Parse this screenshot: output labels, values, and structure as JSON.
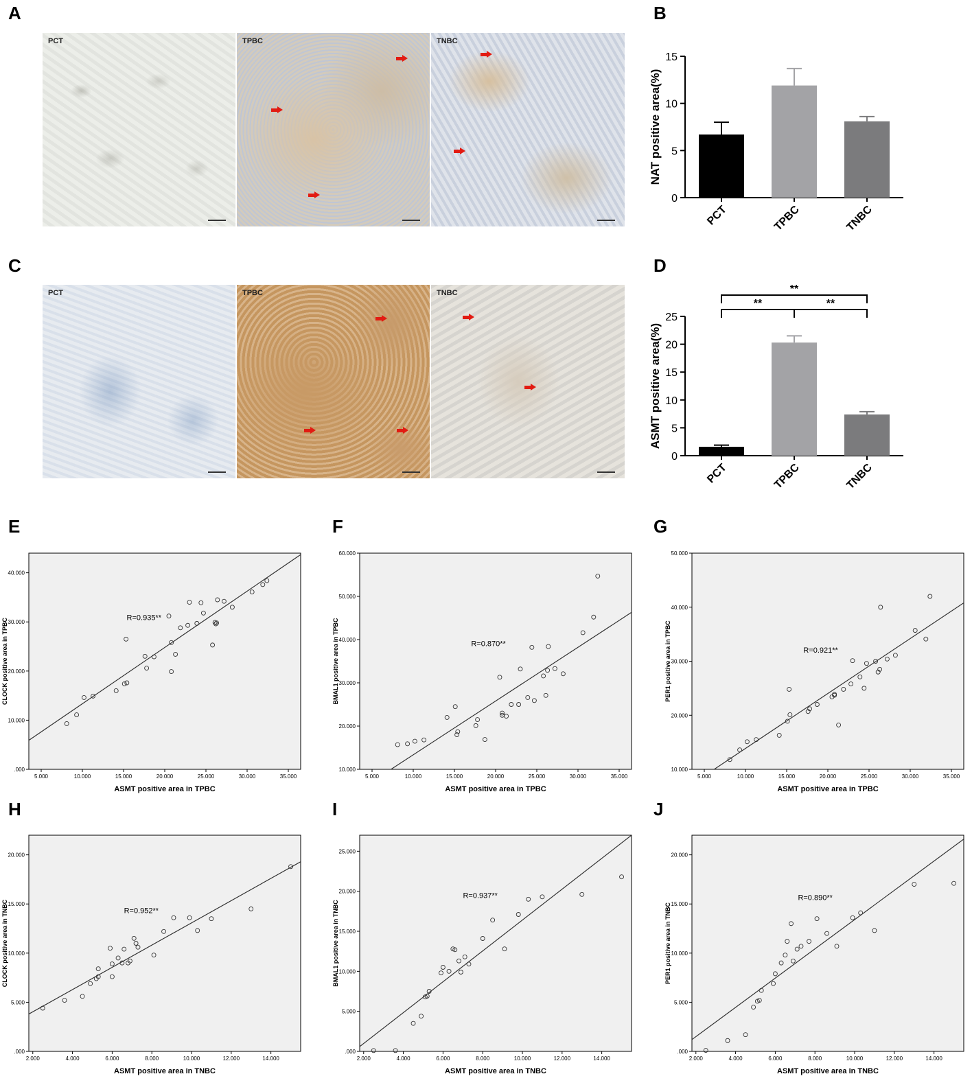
{
  "panels": {
    "A": {
      "letter": "A",
      "images": [
        {
          "label": "PCT"
        },
        {
          "label": "TPBC"
        },
        {
          "label": "TNBC"
        }
      ]
    },
    "B": {
      "letter": "B"
    },
    "C": {
      "letter": "C",
      "images": [
        {
          "label": "PCT"
        },
        {
          "label": "TPBC"
        },
        {
          "label": "TNBC"
        }
      ]
    },
    "D": {
      "letter": "D"
    },
    "E": {
      "letter": "E"
    },
    "F": {
      "letter": "F"
    },
    "G": {
      "letter": "G"
    },
    "H": {
      "letter": "H"
    },
    "I": {
      "letter": "I"
    },
    "J": {
      "letter": "J"
    }
  },
  "colors": {
    "bar_pct": "#000000",
    "bar_tpbc": "#a3a3a6",
    "bar_tnbc": "#7b7b7d",
    "scatter_bg": "#f0f0f0",
    "arrow": "#e21b12"
  },
  "chart_data": [
    {
      "id": "B",
      "type": "bar",
      "categories": [
        "PCT",
        "TPBC",
        "TNBC"
      ],
      "values": [
        6.7,
        11.9,
        8.1
      ],
      "errors": [
        1.3,
        1.8,
        0.5
      ],
      "ylabel": "NAT positive area(%)",
      "ylim": [
        0,
        15
      ],
      "yticks": [
        0,
        5,
        10,
        15
      ]
    },
    {
      "id": "D",
      "type": "bar",
      "categories": [
        "PCT",
        "TPBC",
        "TNBC"
      ],
      "values": [
        1.6,
        20.3,
        7.4
      ],
      "errors": [
        0.3,
        1.2,
        0.5
      ],
      "ylabel": "ASMT positive area(%)",
      "ylim": [
        0,
        25
      ],
      "yticks": [
        0,
        5,
        10,
        15,
        20,
        25
      ],
      "significance": [
        {
          "from": 0,
          "to": 1,
          "label": "**"
        },
        {
          "from": 1,
          "to": 2,
          "label": "**"
        },
        {
          "from": 0,
          "to": 2,
          "label": "**"
        }
      ]
    },
    {
      "id": "E",
      "type": "scatter",
      "xlabel": "ASMT positive area in TPBC",
      "ylabel": "CLOCK positive area in TPBC",
      "annotation": "R=0.935**",
      "xlim": [
        3.5,
        36.5
      ],
      "ylim": [
        0,
        44
      ],
      "xticks": [
        5,
        10,
        15,
        20,
        25,
        30,
        35
      ],
      "xtick_labels": [
        "5.000",
        "10.000",
        "15.000",
        "20.000",
        "25.000",
        "30.000",
        "35.000"
      ],
      "yticks": [
        0,
        10,
        20,
        30,
        40
      ],
      "ytick_labels": [
        ".000",
        "10.000",
        "20.000",
        "30.000",
        "40.000"
      ],
      "x": [
        8.1,
        9.3,
        10.2,
        11.3,
        14.1,
        15.1,
        15.3,
        15.4,
        17.6,
        17.8,
        18.7,
        20.5,
        20.8,
        20.8,
        21.3,
        21.9,
        22.8,
        23.0,
        23.9,
        24.4,
        24.7,
        25.8,
        26.1,
        26.3,
        26.2,
        26.4,
        27.2,
        28.2,
        30.6,
        31.9,
        32.4
      ],
      "y": [
        9.3,
        11.1,
        14.6,
        14.9,
        16.0,
        17.4,
        26.5,
        17.6,
        23.0,
        20.6,
        22.9,
        31.2,
        19.9,
        25.8,
        23.4,
        28.8,
        29.3,
        34.0,
        29.7,
        33.9,
        31.8,
        25.3,
        29.9,
        29.8,
        29.6,
        34.5,
        34.2,
        33.0,
        36.1,
        37.6,
        38.4
      ],
      "fit": {
        "x0": 3.5,
        "y0": 5.9,
        "x1": 36.5,
        "y1": 43.7
      }
    },
    {
      "id": "F",
      "type": "scatter",
      "xlabel": "ASMT positive area in TPBC",
      "ylabel": "BMAL1 positive area in TPBC",
      "annotation": "R=0.870**",
      "xlim": [
        3.5,
        36.5
      ],
      "ylim": [
        10,
        60
      ],
      "xticks": [
        5,
        10,
        15,
        20,
        25,
        30,
        35
      ],
      "xtick_labels": [
        "5.000",
        "10.000",
        "15.000",
        "20.000",
        "25.000",
        "30.000",
        "35.000"
      ],
      "yticks": [
        10,
        20,
        30,
        40,
        50,
        60
      ],
      "ytick_labels": [
        "10.000",
        "20.000",
        "30.000",
        "40.000",
        "50.000",
        "60.000"
      ],
      "x": [
        8.1,
        9.3,
        10.2,
        11.3,
        14.1,
        15.1,
        15.3,
        15.4,
        17.6,
        17.8,
        18.7,
        20.5,
        20.8,
        20.8,
        21.3,
        21.9,
        22.8,
        23.0,
        23.9,
        24.4,
        24.7,
        25.8,
        26.1,
        26.3,
        26.4,
        27.2,
        28.2,
        30.6,
        31.9,
        32.4
      ],
      "y": [
        15.7,
        15.9,
        16.5,
        16.8,
        22.0,
        24.5,
        18.0,
        18.7,
        20.1,
        21.5,
        16.9,
        31.3,
        22.5,
        23.0,
        22.3,
        25.0,
        25.0,
        33.2,
        26.6,
        38.2,
        25.9,
        31.6,
        27.1,
        32.9,
        38.4,
        33.3,
        32.1,
        41.6,
        45.2,
        54.7
      ],
      "fit": {
        "x0": 7.3,
        "y0": 10.0,
        "x1": 36.5,
        "y1": 46.3
      }
    },
    {
      "id": "G",
      "type": "scatter",
      "xlabel": "ASMT positive area in TPBC",
      "ylabel": "PER1 positive area in TPBC",
      "annotation": "R=0.921**",
      "xlim": [
        3.5,
        36.5
      ],
      "ylim": [
        10,
        50
      ],
      "xticks": [
        5,
        10,
        15,
        20,
        25,
        30,
        35
      ],
      "xtick_labels": [
        "5.000",
        "10.000",
        "15.000",
        "20.000",
        "25.000",
        "30.000",
        "35.000"
      ],
      "yticks": [
        10,
        20,
        30,
        40,
        50
      ],
      "ytick_labels": [
        "10.000",
        "20.000",
        "30.000",
        "40.000",
        "50.000"
      ],
      "x": [
        8.1,
        9.3,
        10.2,
        11.3,
        14.1,
        15.1,
        15.3,
        15.4,
        17.6,
        17.8,
        18.7,
        20.5,
        20.8,
        20.8,
        21.3,
        21.9,
        22.8,
        23.0,
        23.9,
        24.4,
        24.7,
        25.8,
        26.1,
        26.3,
        26.4,
        27.2,
        28.2,
        30.6,
        31.9,
        32.4
      ],
      "y": [
        11.8,
        13.6,
        15.1,
        15.5,
        16.3,
        18.9,
        24.8,
        20.1,
        20.7,
        21.2,
        22.0,
        23.4,
        23.7,
        23.9,
        18.2,
        24.8,
        25.8,
        30.1,
        27.1,
        25.0,
        29.6,
        30.0,
        28.0,
        28.5,
        40.0,
        30.4,
        31.1,
        35.7,
        34.1,
        42.0
      ],
      "fit": {
        "x0": 6.2,
        "y0": 10.0,
        "x1": 36.5,
        "y1": 40.8
      }
    },
    {
      "id": "H",
      "type": "scatter",
      "xlabel": "ASMT positive area in TNBC",
      "ylabel": "CLOCK positive area in TNBC",
      "annotation": "R=0.952**",
      "xlim": [
        1.8,
        15.5
      ],
      "ylim": [
        0,
        22
      ],
      "xticks": [
        2,
        4,
        6,
        8,
        10,
        12,
        14
      ],
      "xtick_labels": [
        "2.000",
        "4.000",
        "6.000",
        "8.000",
        "10.000",
        "12.000",
        "14.000"
      ],
      "yticks": [
        0,
        5,
        10,
        15,
        20
      ],
      "ytick_labels": [
        ".000",
        "5.000",
        "10.000",
        "15.000",
        "20.000"
      ],
      "x": [
        2.5,
        3.6,
        4.5,
        4.9,
        5.2,
        5.3,
        5.3,
        5.9,
        6.0,
        6.0,
        6.3,
        6.5,
        6.6,
        6.8,
        6.9,
        7.1,
        7.2,
        7.3,
        8.1,
        8.6,
        9.1,
        9.9,
        10.3,
        11.0,
        13.0,
        15.0
      ],
      "y": [
        4.4,
        5.2,
        5.6,
        6.9,
        7.4,
        7.6,
        8.4,
        10.5,
        8.9,
        7.6,
        9.5,
        9.0,
        10.4,
        9.0,
        9.2,
        11.5,
        11.0,
        10.6,
        9.8,
        12.2,
        13.6,
        13.6,
        12.3,
        13.5,
        14.5,
        18.8
      ],
      "fit": {
        "x0": 1.8,
        "y0": 3.8,
        "x1": 15.5,
        "y1": 19.3
      }
    },
    {
      "id": "I",
      "type": "scatter",
      "xlabel": "ASMT positive area in TNBC",
      "ylabel": "BMAL1 positive area in TNBC",
      "annotation": "R=0.937**",
      "xlim": [
        1.8,
        15.5
      ],
      "ylim": [
        0,
        27
      ],
      "xticks": [
        2,
        4,
        6,
        8,
        10,
        12,
        14
      ],
      "xtick_labels": [
        "2.000",
        "4.000",
        "6.000",
        "8.000",
        "10.000",
        "12.000",
        "14.000"
      ],
      "yticks": [
        0,
        5,
        10,
        15,
        20,
        25
      ],
      "ytick_labels": [
        ".000",
        "5.000",
        "10.000",
        "15.000",
        "20.000",
        "25.000"
      ],
      "x": [
        2.5,
        3.6,
        4.5,
        4.9,
        5.1,
        5.2,
        5.3,
        5.9,
        6.0,
        6.3,
        6.5,
        6.6,
        6.8,
        6.9,
        7.1,
        7.3,
        8.0,
        8.5,
        9.1,
        9.8,
        10.3,
        11.0,
        13.0,
        15.0
      ],
      "y": [
        0.1,
        0.1,
        3.5,
        4.4,
        6.8,
        6.9,
        7.5,
        9.8,
        10.5,
        10.0,
        12.8,
        12.7,
        11.3,
        9.9,
        11.8,
        10.9,
        14.1,
        16.4,
        12.8,
        17.1,
        19.0,
        19.3,
        19.6,
        21.8
      ],
      "fit": {
        "x0": 1.8,
        "y0": 0.6,
        "x1": 15.5,
        "y1": 27.0
      }
    },
    {
      "id": "J",
      "type": "scatter",
      "xlabel": "ASMT positive area in TNBC",
      "ylabel": "PER1 positive area in TNBC",
      "annotation": "R=0.890**",
      "xlim": [
        1.8,
        15.5
      ],
      "ylim": [
        0,
        22
      ],
      "xticks": [
        2,
        4,
        6,
        8,
        10,
        12,
        14
      ],
      "xtick_labels": [
        "2.000",
        "4.000",
        "6.000",
        "8.000",
        "10.000",
        "12.000",
        "14.000"
      ],
      "yticks": [
        0,
        5,
        10,
        15,
        20
      ],
      "ytick_labels": [
        ".000",
        "5.000",
        "10.000",
        "15.000",
        "20.000"
      ],
      "x": [
        2.5,
        3.6,
        4.5,
        4.9,
        5.1,
        5.2,
        5.3,
        5.9,
        6.0,
        6.3,
        6.5,
        6.6,
        6.8,
        6.9,
        7.1,
        7.3,
        7.7,
        8.1,
        8.6,
        9.1,
        9.9,
        10.3,
        11.0,
        13.0,
        15.0
      ],
      "y": [
        0.1,
        1.1,
        1.7,
        4.5,
        5.1,
        5.2,
        6.2,
        6.9,
        7.9,
        9.0,
        9.8,
        11.2,
        13.0,
        9.2,
        10.4,
        10.7,
        11.2,
        13.5,
        12.0,
        10.7,
        13.6,
        14.1,
        12.3,
        17.0,
        17.1
      ],
      "fit": {
        "x0": 1.8,
        "y0": 1.2,
        "x1": 15.5,
        "y1": 21.6
      }
    }
  ]
}
